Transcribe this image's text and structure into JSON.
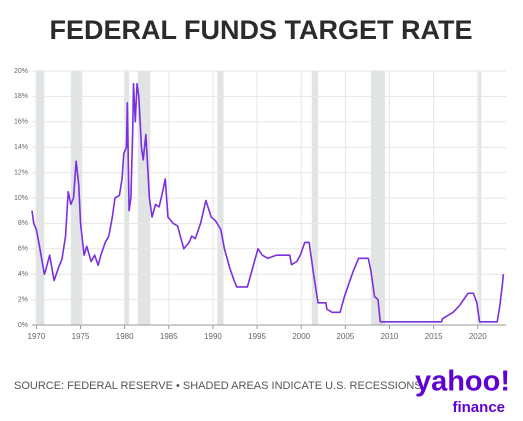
{
  "chart_data": {
    "type": "line",
    "title": "FEDERAL FUNDS TARGET RATE",
    "source": "SOURCE: FEDERAL RESERVE • SHADED AREAS INDICATE U.S. RECESSIONS",
    "logo": "yahoo!",
    "logo_sub": "finance",
    "x": [
      1969.5,
      1969.7,
      1970.0,
      1970.4,
      1970.9,
      1971.0,
      1971.5,
      1972.0,
      1972.5,
      1972.9,
      1973.3,
      1973.6,
      1973.9,
      1974.2,
      1974.5,
      1974.8,
      1975.0,
      1975.4,
      1975.7,
      1976.2,
      1976.6,
      1977.0,
      1977.3,
      1977.8,
      1978.2,
      1978.6,
      1978.9,
      1979.4,
      1979.7,
      1979.9,
      1980.2,
      1980.3,
      1980.5,
      1980.7,
      1980.9,
      1981.0,
      1981.2,
      1981.4,
      1981.6,
      1981.9,
      1982.1,
      1982.4,
      1982.8,
      1983.1,
      1983.5,
      1983.9,
      1984.3,
      1984.6,
      1984.9,
      1985.5,
      1986.0,
      1986.3,
      1986.7,
      1987.3,
      1987.6,
      1988.0,
      1988.6,
      1989.2,
      1989.8,
      1990.3,
      1990.9,
      1991.3,
      1991.9,
      1992.4,
      1992.7,
      1993.9,
      1994.3,
      1994.7,
      1995.1,
      1995.6,
      1996.2,
      1997.2,
      1998.7,
      1998.9,
      1999.5,
      1999.9,
      2000.4,
      2000.9,
      2001.4,
      2001.9,
      2002.8,
      2002.9,
      2003.5,
      2004.4,
      2004.9,
      2005.9,
      2006.5,
      2007.6,
      2007.9,
      2008.3,
      2008.7,
      2008.95,
      2015.9,
      2016.0,
      2017.2,
      2017.9,
      2018.9,
      2019.5,
      2019.9,
      2020.2,
      2022.2,
      2022.5,
      2022.8,
      2022.9
    ],
    "series": [
      {
        "name": "Federal funds target rate",
        "color": "#7b2fe0",
        "values": [
          9.0,
          8.0,
          7.5,
          6.0,
          4.0,
          4.2,
          5.5,
          3.5,
          4.5,
          5.2,
          7.0,
          10.5,
          9.5,
          10.0,
          12.9,
          11.0,
          8.0,
          5.5,
          6.2,
          5.0,
          5.5,
          4.7,
          5.5,
          6.5,
          7.0,
          8.5,
          10.0,
          10.2,
          11.5,
          13.5,
          14.0,
          17.5,
          9.0,
          10.0,
          15.0,
          19.0,
          16.0,
          19.0,
          18.0,
          14.0,
          13.0,
          15.0,
          10.0,
          8.5,
          9.5,
          9.3,
          10.5,
          11.5,
          8.5,
          8.0,
          7.8,
          7.0,
          6.0,
          6.5,
          7.0,
          6.8,
          8.0,
          9.8,
          8.5,
          8.2,
          7.5,
          6.0,
          4.5,
          3.5,
          3.0,
          3.0,
          4.0,
          5.0,
          6.0,
          5.5,
          5.25,
          5.5,
          5.5,
          4.75,
          5.0,
          5.5,
          6.5,
          6.5,
          4.0,
          1.75,
          1.75,
          1.25,
          1.0,
          1.0,
          2.25,
          4.25,
          5.25,
          5.25,
          4.25,
          2.25,
          2.0,
          0.25,
          0.25,
          0.5,
          1.0,
          1.5,
          2.5,
          2.5,
          1.75,
          0.25,
          0.25,
          1.5,
          3.25,
          4.0
        ]
      }
    ],
    "recessions": [
      [
        1969.9,
        1970.9
      ],
      [
        1973.9,
        1975.2
      ],
      [
        1980.0,
        1980.5
      ],
      [
        1981.5,
        1982.9
      ],
      [
        1990.5,
        1991.2
      ],
      [
        2001.2,
        2001.9
      ],
      [
        2007.9,
        2009.5
      ],
      [
        2020.1,
        2020.4
      ]
    ],
    "recession_color": "#e1e4e4",
    "xlim": [
      1969.5,
      2023.2
    ],
    "xticks": [
      1970,
      1975,
      1980,
      1985,
      1990,
      1995,
      2000,
      2005,
      2010,
      2015,
      2020
    ],
    "ylim": [
      0,
      20
    ],
    "yticks": [
      {
        "value": 0,
        "label": "0%"
      },
      {
        "value": 2,
        "label": "2%"
      },
      {
        "value": 4,
        "label": "4%"
      },
      {
        "value": 6,
        "label": "6%"
      },
      {
        "value": 8,
        "label": "8%"
      },
      {
        "value": 10,
        "label": "10%"
      },
      {
        "value": 12,
        "label": "12%"
      },
      {
        "value": 14,
        "label": "14%"
      },
      {
        "value": 16,
        "label": "16%"
      },
      {
        "value": 18,
        "label": "18%"
      },
      {
        "value": 20,
        "label": "20%"
      }
    ],
    "grid": true
  }
}
